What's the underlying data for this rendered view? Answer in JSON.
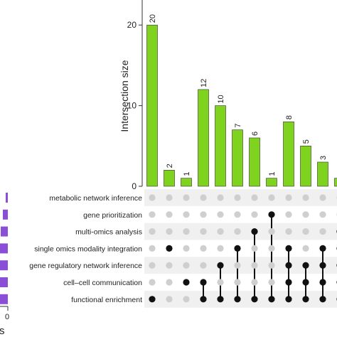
{
  "chart_data": {
    "type": "bar",
    "ylabel": "Intersection size",
    "ylim": [
      0,
      25
    ],
    "yticks": [
      0,
      10,
      20
    ],
    "bar_color": "#7fd31f",
    "dot_active_color": "#111111",
    "dot_inactive_color": "#cfcfcf",
    "set_bar_color": "#8a4fd6",
    "sets": [
      "metabolic network inference",
      "gene prioritization",
      "multi-omics analysis",
      "single omics modality integration",
      "gene regulatory network inference",
      "cell–cell communication",
      "functional enrichment"
    ],
    "set_size_axis_tick": "0",
    "set_size_axis_partial_label": "s",
    "intersections": [
      {
        "value": 20,
        "label": "20",
        "members": [
          6
        ]
      },
      {
        "value": 2,
        "label": "2",
        "members": [
          3
        ]
      },
      {
        "value": 1,
        "label": "1",
        "members": [
          5
        ]
      },
      {
        "value": 12,
        "label": "12",
        "members": [
          5,
          6
        ]
      },
      {
        "value": 10,
        "label": "10",
        "members": [
          4,
          6
        ]
      },
      {
        "value": 7,
        "label": "7",
        "members": [
          3,
          6
        ]
      },
      {
        "value": 6,
        "label": "6",
        "members": [
          2,
          6
        ]
      },
      {
        "value": 1,
        "label": "1",
        "members": [
          1,
          6
        ]
      },
      {
        "value": 8,
        "label": "8",
        "members": [
          3,
          4,
          5,
          6
        ]
      },
      {
        "value": 5,
        "label": "5",
        "members": [
          4,
          5,
          6
        ]
      },
      {
        "value": 3,
        "label": "3",
        "members": [
          3,
          4,
          5,
          6
        ]
      },
      {
        "value": 1,
        "label": "",
        "members": [
          2,
          3,
          4,
          5,
          6
        ]
      }
    ]
  }
}
